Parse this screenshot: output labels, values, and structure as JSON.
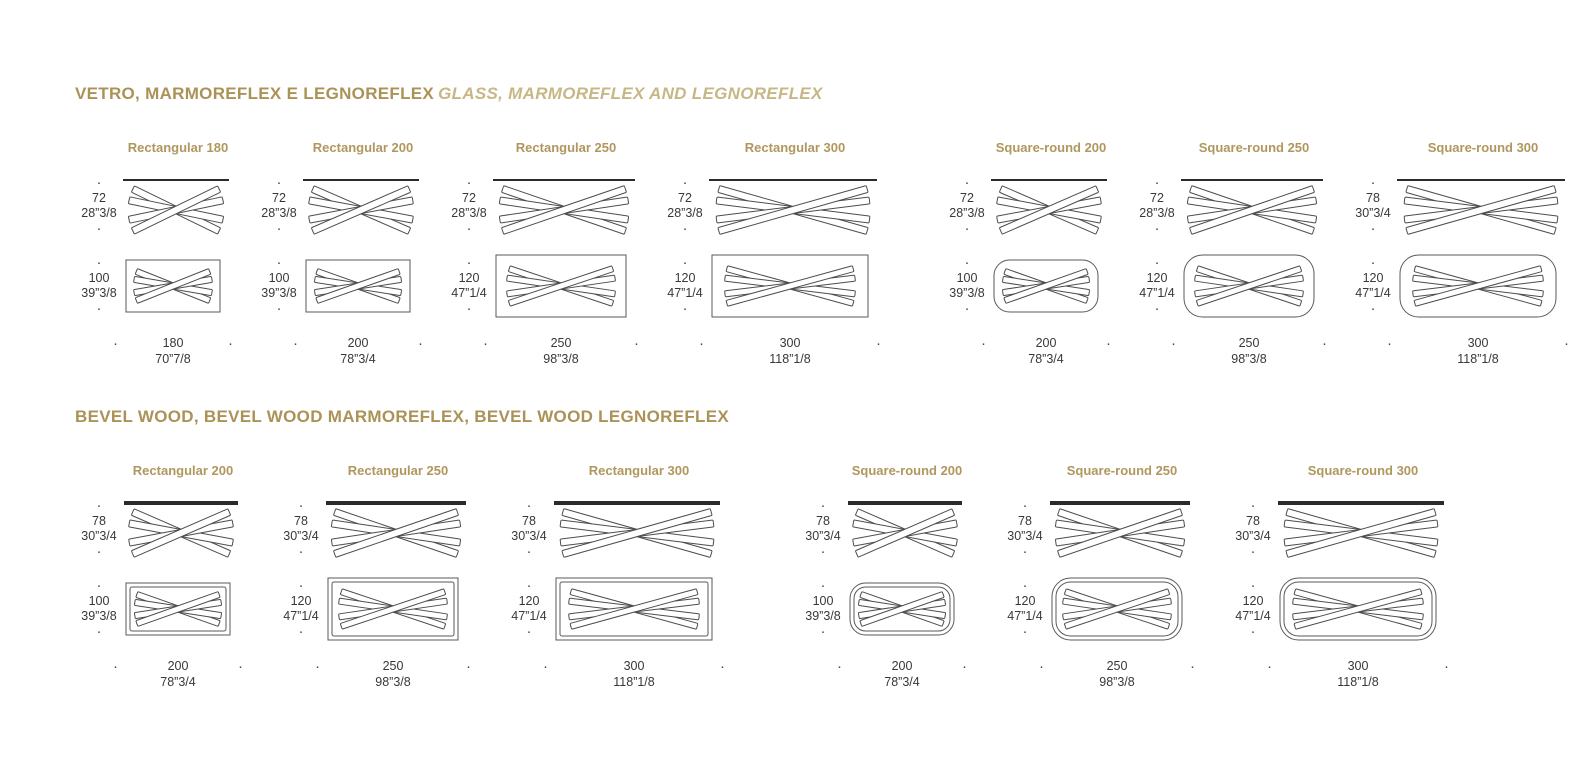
{
  "colors": {
    "accent": "#ab9257",
    "accent_italic": "#c7b786",
    "drawing_line": "#4d4d4d",
    "tabletop_line": "#2b2b2b",
    "dim_text": "#383838"
  },
  "sections": [
    {
      "title": "VETRO, MARMOREFLEX E LEGNOREFLEX",
      "subtitle": "GLASS, MARMOREFLEX AND LEGNOREFLEX",
      "style": "glass",
      "columns": [
        {
          "label": "Rectangular 180",
          "shape": "rect",
          "height_cm": "72",
          "height_in": "28”3/8",
          "width_cm": "100",
          "width_in": "39”3/8",
          "length_cm": "180",
          "length_in": "70”7/8"
        },
        {
          "label": "Rectangular 200",
          "shape": "rect",
          "height_cm": "72",
          "height_in": "28”3/8",
          "width_cm": "100",
          "width_in": "39”3/8",
          "length_cm": "200",
          "length_in": "78”3/4"
        },
        {
          "label": "Rectangular 250",
          "shape": "rect",
          "height_cm": "72",
          "height_in": "28”3/8",
          "width_cm": "120",
          "width_in": "47”1/4",
          "length_cm": "250",
          "length_in": "98”3/8"
        },
        {
          "label": "Rectangular 300",
          "shape": "rect",
          "height_cm": "72",
          "height_in": "28”3/8",
          "width_cm": "120",
          "width_in": "47”1/4",
          "length_cm": "300",
          "length_in": "118”1/8"
        },
        {
          "label": "Square-round 200",
          "shape": "round",
          "height_cm": "72",
          "height_in": "28”3/8",
          "width_cm": "100",
          "width_in": "39”3/8",
          "length_cm": "200",
          "length_in": "78”3/4"
        },
        {
          "label": "Square-round 250",
          "shape": "round",
          "height_cm": "72",
          "height_in": "28”3/8",
          "width_cm": "120",
          "width_in": "47”1/4",
          "length_cm": "250",
          "length_in": "98”3/8"
        },
        {
          "label": "Square-round 300",
          "shape": "round",
          "height_cm": "78",
          "height_in": "30”3/4",
          "width_cm": "120",
          "width_in": "47”1/4",
          "length_cm": "300",
          "length_in": "118”1/8"
        }
      ]
    },
    {
      "title": "BEVEL WOOD, BEVEL WOOD MARMOREFLEX, BEVEL WOOD LEGNOREFLEX",
      "subtitle": "",
      "style": "bevel",
      "columns": [
        {
          "label": "Rectangular 200",
          "shape": "rect",
          "height_cm": "78",
          "height_in": "30”3/4",
          "width_cm": "100",
          "width_in": "39”3/8",
          "length_cm": "200",
          "length_in": "78”3/4"
        },
        {
          "label": "Rectangular 250",
          "shape": "rect",
          "height_cm": "78",
          "height_in": "30”3/4",
          "width_cm": "120",
          "width_in": "47”1/4",
          "length_cm": "250",
          "length_in": "98”3/8"
        },
        {
          "label": "Rectangular 300",
          "shape": "rect",
          "height_cm": "78",
          "height_in": "30”3/4",
          "width_cm": "120",
          "width_in": "47”1/4",
          "length_cm": "300",
          "length_in": "118”1/8"
        },
        {
          "label": "Square-round 200",
          "shape": "round",
          "height_cm": "78",
          "height_in": "30”3/4",
          "width_cm": "100",
          "width_in": "39”3/8",
          "length_cm": "200",
          "length_in": "78”3/4"
        },
        {
          "label": "Square-round 250",
          "shape": "round",
          "height_cm": "78",
          "height_in": "30”3/4",
          "width_cm": "120",
          "width_in": "47”1/4",
          "length_cm": "250",
          "length_in": "98”3/8"
        },
        {
          "label": "Square-round 300",
          "shape": "round",
          "height_cm": "78",
          "height_in": "30”3/4",
          "width_cm": "120",
          "width_in": "47”1/4",
          "length_cm": "300",
          "length_in": "118”1/8"
        }
      ]
    }
  ]
}
